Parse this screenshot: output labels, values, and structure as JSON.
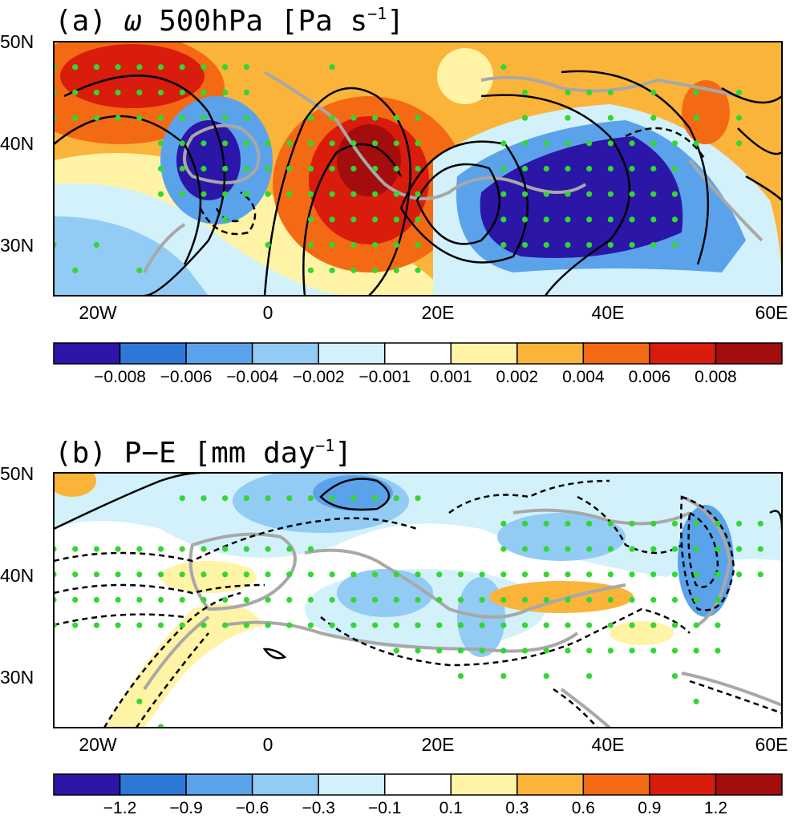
{
  "panels": [
    {
      "id": "a",
      "title_prefix": "(a) ",
      "title_symbol": "ω",
      "title_main": " 500hPa [Pa s",
      "title_sup": "−1",
      "title_close": "]",
      "y_ticks": [
        "50N",
        "40N",
        "30N"
      ],
      "x_ticks": [
        "20W",
        "0",
        "20E",
        "40E",
        "60E"
      ],
      "colorbar_colors": [
        "#2b16a8",
        "#2e78d8",
        "#5aa3ea",
        "#92cbf4",
        "#d2f1fb",
        "#ffffff",
        "#fff3a6",
        "#fbb43a",
        "#f46a14",
        "#d91c0c",
        "#a30d0d"
      ],
      "colorbar_labels": [
        "−0.008",
        "−0.006",
        "−0.004",
        "−0.002",
        "−0.001",
        "0.001",
        "0.002",
        "0.004",
        "0.006",
        "0.008"
      ]
    },
    {
      "id": "b",
      "title_prefix": "(b) ",
      "title_symbol": "",
      "title_main": "P−E [mm day",
      "title_sup": "−1",
      "title_close": "]",
      "y_ticks": [
        "50N",
        "40N",
        "30N"
      ],
      "x_ticks": [
        "20W",
        "0",
        "20E",
        "40E",
        "60E"
      ],
      "colorbar_colors": [
        "#2b16a8",
        "#2e78d8",
        "#5aa3ea",
        "#92cbf4",
        "#d2f1fb",
        "#ffffff",
        "#fff3a6",
        "#fbb43a",
        "#f46a14",
        "#d91c0c",
        "#a30d0d"
      ],
      "colorbar_labels": [
        "−1.2",
        "−0.9",
        "−0.6",
        "−0.3",
        "−0.1",
        "0.1",
        "0.3",
        "0.6",
        "0.9",
        "1.2"
      ]
    }
  ],
  "stipple_color": "#33d633",
  "coast_color": "#a8a8a8"
}
